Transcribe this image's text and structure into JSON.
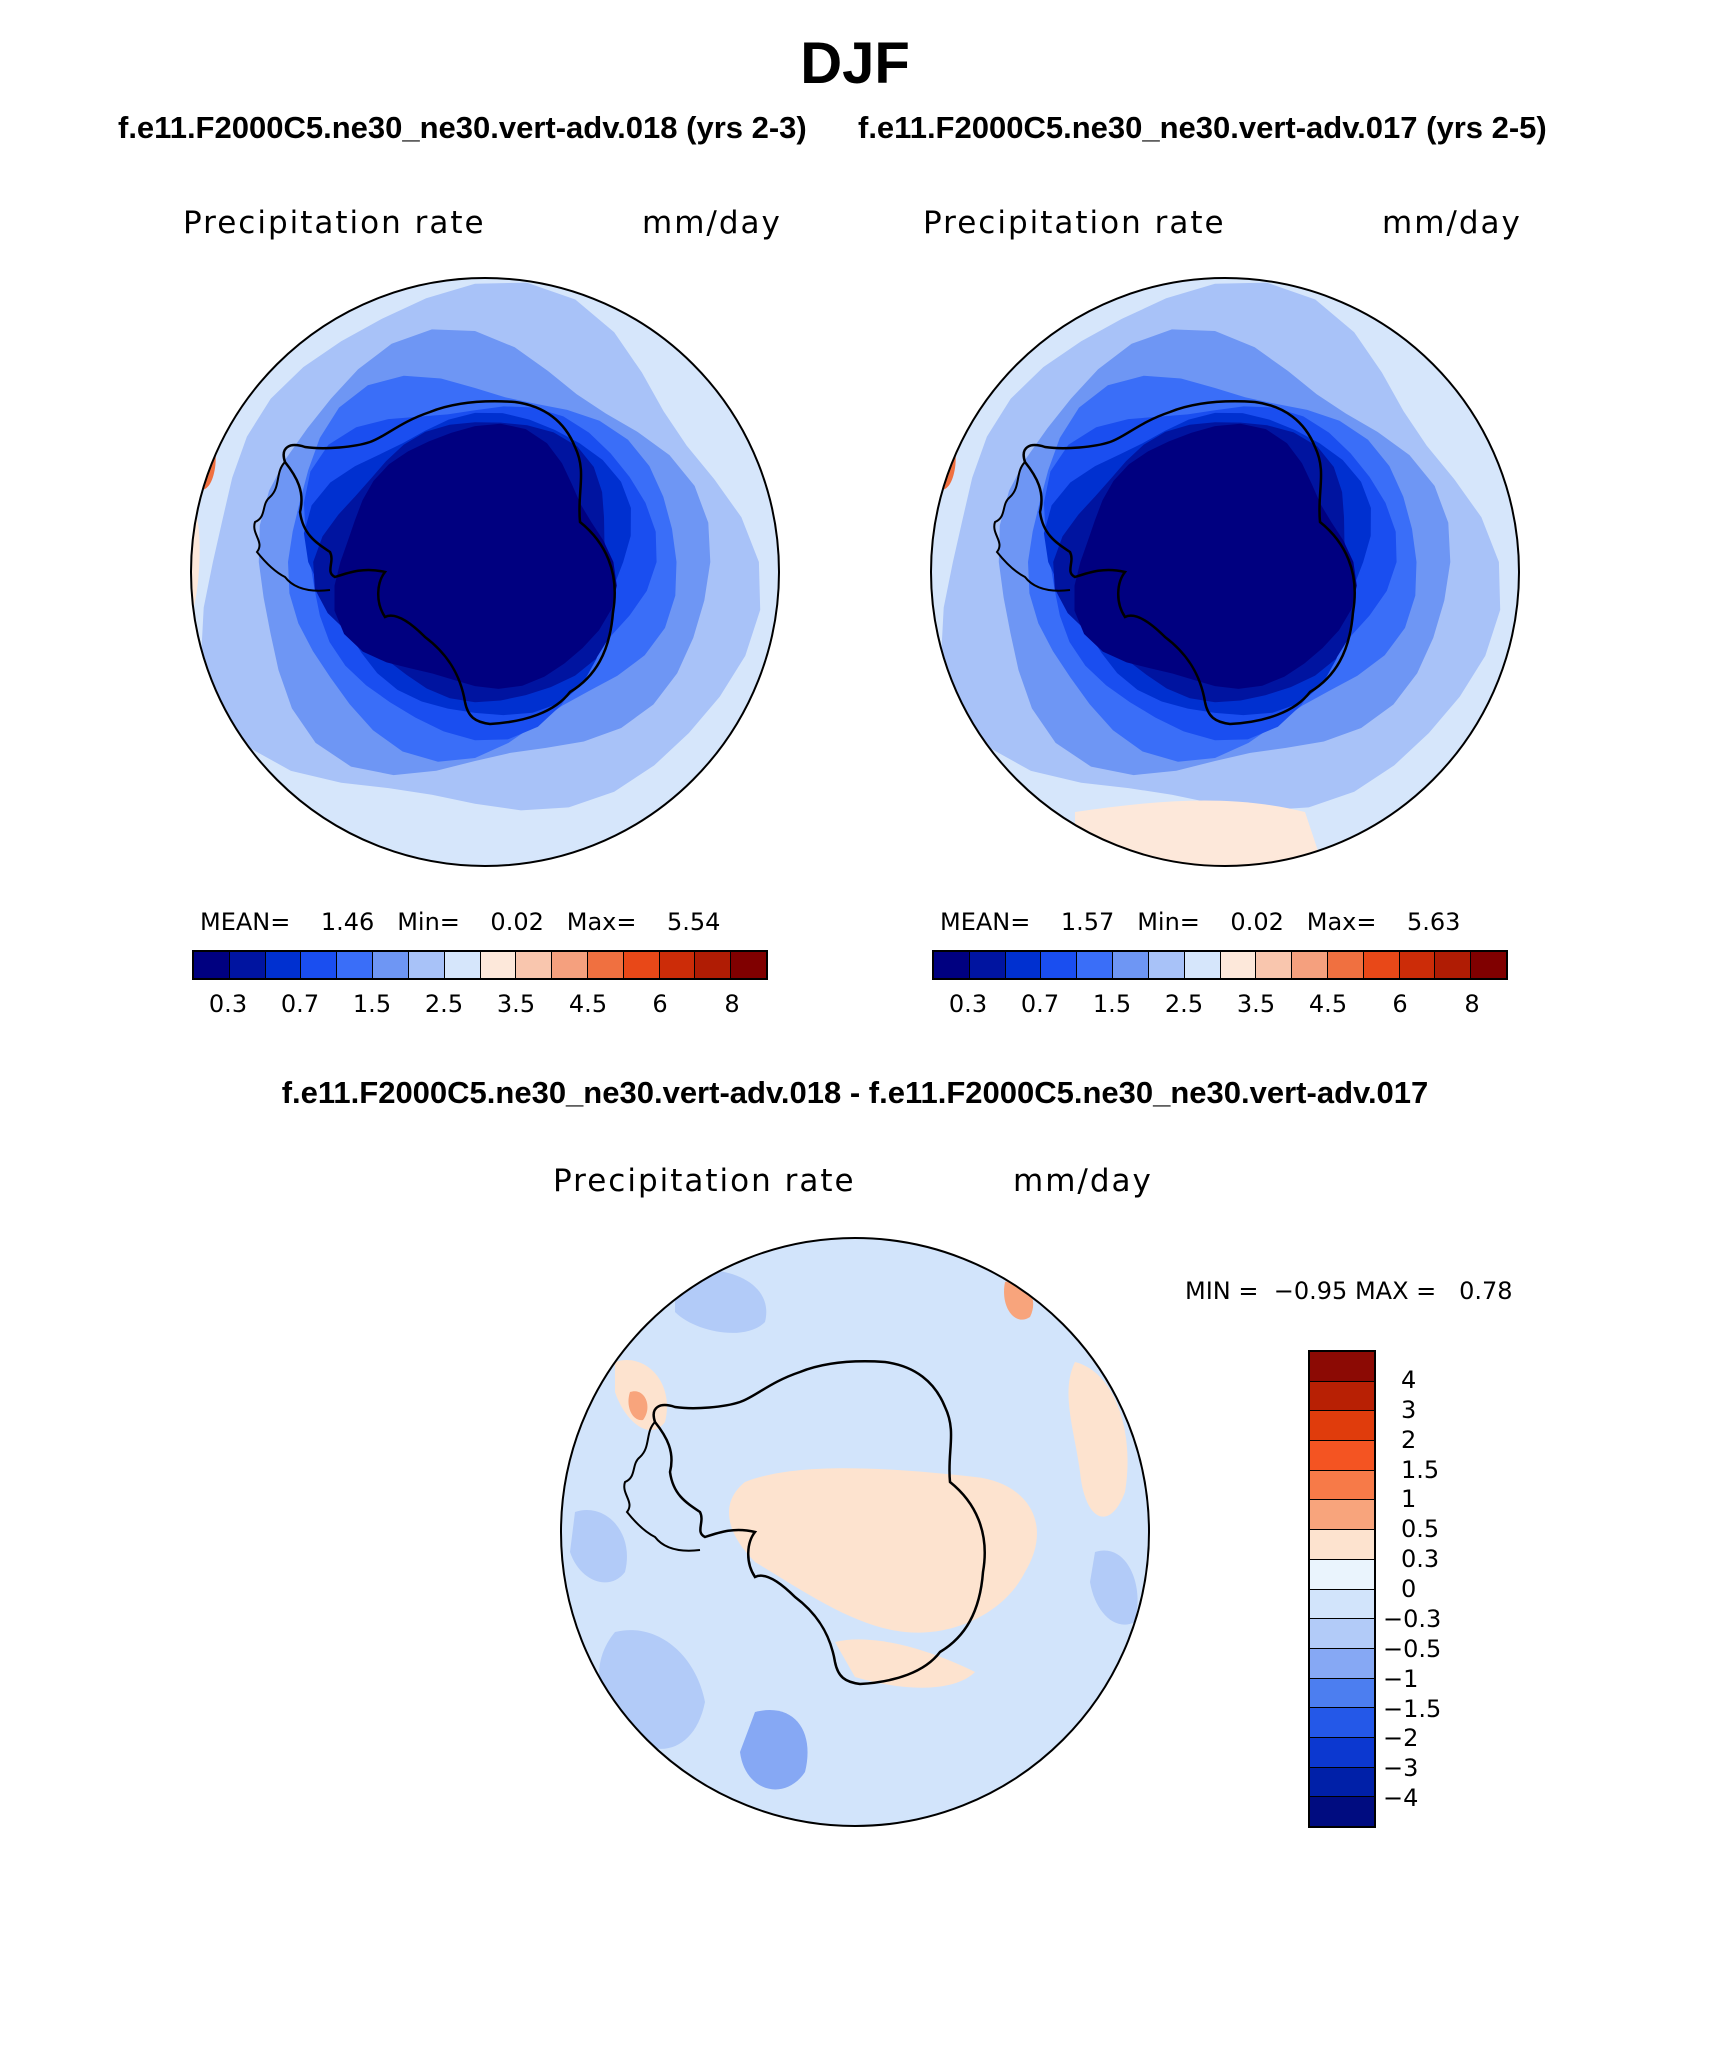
{
  "header": {
    "title": "DJF",
    "subtitle_left": "f.e11.F2000C5.ne30_ne30.vert-adv.018 (yrs 2-3)",
    "subtitle_right": "f.e11.F2000C5.ne30_ne30.vert-adv.017 (yrs 2-5)"
  },
  "panels": {
    "left": {
      "variable": "Precipitation rate",
      "units": "mm/day",
      "mean_label": "MEAN=",
      "mean_value": "1.46",
      "min_label": "Min=",
      "min_value": "0.02",
      "max_label": "Max=",
      "max_value": "5.54"
    },
    "right": {
      "variable": "Precipitation rate",
      "units": "mm/day",
      "mean_label": "MEAN=",
      "mean_value": "1.57",
      "min_label": "Min=",
      "min_value": "0.02",
      "max_label": "Max=",
      "max_value": "5.63"
    },
    "difference": {
      "title": "f.e11.F2000C5.ne30_ne30.vert-adv.018 - f.e11.F2000C5.ne30_ne30.vert-adv.017",
      "variable": "Precipitation rate",
      "units": "mm/day",
      "min_label": "MIN =",
      "min_value": "−0.95",
      "max_label": "MAX =",
      "max_value": "0.78"
    }
  },
  "colorbars": {
    "abs_colors": [
      "#000080",
      "#0014a0",
      "#0030d0",
      "#1a4ef0",
      "#3a6ef8",
      "#6e96f4",
      "#a8c2f8",
      "#d6e6fb",
      "#fde8da",
      "#f9c6ae",
      "#f5a07e",
      "#f07040",
      "#e84818",
      "#cc2c08",
      "#b01c04",
      "#800000"
    ],
    "abs_ticks": [
      "0.3",
      "0.7",
      "1.5",
      "2.5",
      "3.5",
      "4.5",
      "6",
      "8"
    ],
    "diff_colors_top_to_bottom": [
      "#8c0a04",
      "#b82004",
      "#e03c0c",
      "#f45422",
      "#f77a48",
      "#f8a47c",
      "#fde3cf",
      "#eaf4fd",
      "#d2e4fb",
      "#b2cbf8",
      "#86a8f4",
      "#4c7ef0",
      "#2458e8",
      "#0c38d0",
      "#0020a8",
      "#000c80"
    ],
    "diff_ticks_top_to_bottom": [
      "4",
      "3",
      "2",
      "1.5",
      "1",
      "0.5",
      "0.3",
      "0",
      "−0.3",
      "−0.5",
      "−1",
      "−1.5",
      "−2",
      "−3",
      "−4"
    ]
  },
  "maps": {
    "left": {
      "ocean_color": "#d6e6fb",
      "ring_colors": [
        "#a8c2f8",
        "#6e96f4",
        "#3a6ef8",
        "#1a4ef0",
        "#0030d0",
        "#0014a0",
        "#000080"
      ],
      "warm_patch_color": "#f07040"
    },
    "right": {
      "ocean_color": "#d6e6fb",
      "ring_colors": [
        "#a8c2f8",
        "#6e96f4",
        "#3a6ef8",
        "#1a4ef0",
        "#0030d0",
        "#0014a0",
        "#000080"
      ],
      "warm_patch_color": "#f07040"
    },
    "difference": {
      "ocean_color": "#d2e4fb",
      "warm_color": "#fde3cf",
      "cool_color": "#b2cbf8",
      "cool_color_2": "#86a8f4",
      "warm_color_2": "#f8a47c"
    }
  }
}
